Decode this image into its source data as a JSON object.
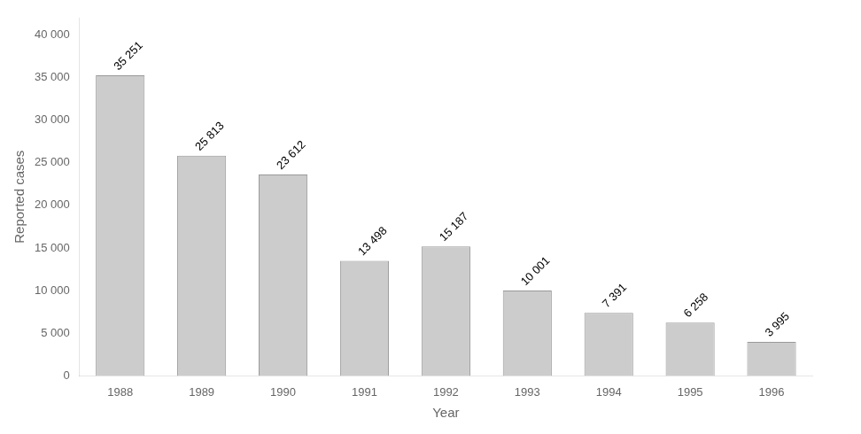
{
  "chart_data": {
    "type": "bar",
    "xlabel": "Year",
    "ylabel": "Reported cases",
    "categories": [
      "1988",
      "1989",
      "1990",
      "1991",
      "1992",
      "1993",
      "1994",
      "1995",
      "1996"
    ],
    "values": [
      35251,
      25813,
      23612,
      13498,
      15187,
      10001,
      7391,
      6258,
      3995
    ],
    "value_labels": [
      "35 251",
      "25 813",
      "23 612",
      "13 498",
      "15 187",
      "10 001",
      "7 391",
      "6 258",
      "3 995"
    ],
    "data_labels": true,
    "color": "#cccccc",
    "ylim": [
      0,
      42000
    ],
    "yticks": [
      0,
      {
        "value": 5000,
        "label": "5 000"
      },
      {
        "value": 10000,
        "label": "10 000"
      },
      {
        "value": 15000,
        "label": "15 000"
      },
      {
        "value": 20000,
        "label": "20 000"
      },
      {
        "value": 25000,
        "label": "25 000"
      },
      {
        "value": 30000,
        "label": "30 000"
      },
      {
        "value": 35000,
        "label": "35 000"
      },
      {
        "value": 40000,
        "label": "40 000"
      }
    ],
    "grid": false
  }
}
